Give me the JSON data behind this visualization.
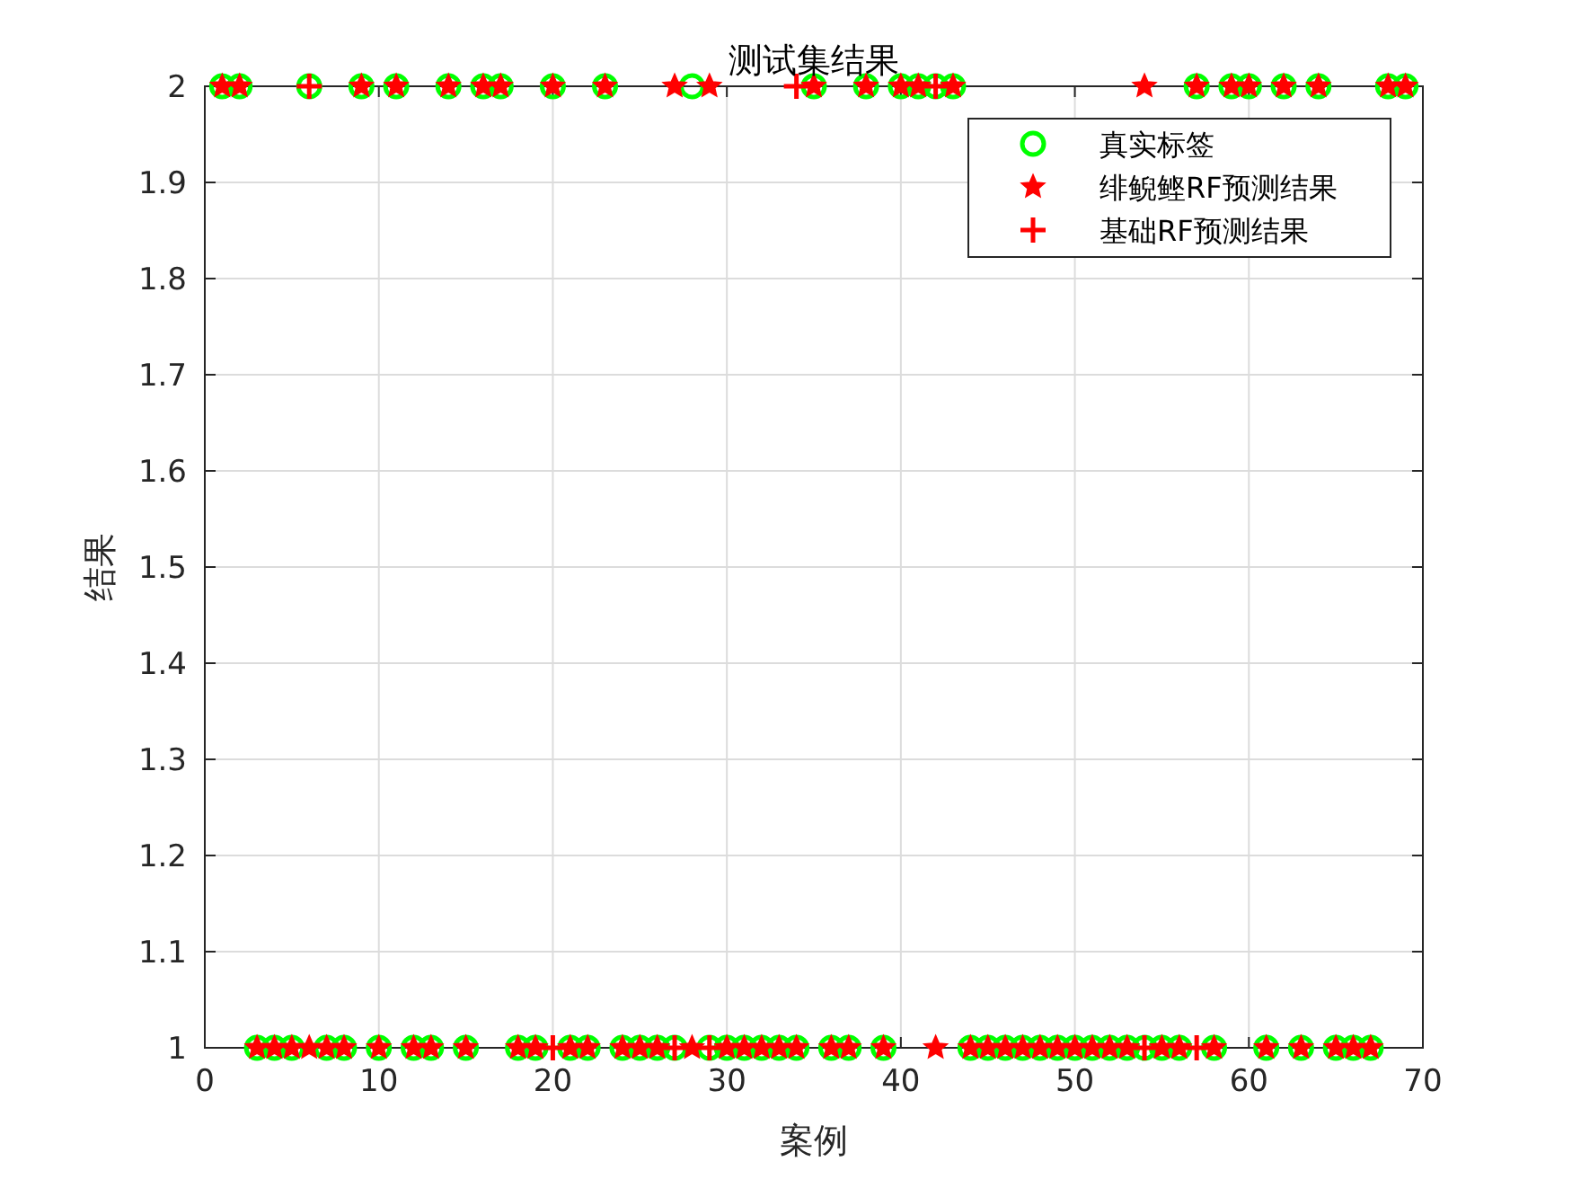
{
  "chart_data": {
    "type": "scatter",
    "title": "测试集结果",
    "xlabel": "案例",
    "ylabel": "结果",
    "x": [
      1,
      2,
      3,
      4,
      5,
      6,
      7,
      8,
      9,
      10,
      11,
      12,
      13,
      14,
      15,
      16,
      17,
      18,
      19,
      20,
      21,
      22,
      23,
      24,
      25,
      26,
      27,
      28,
      29,
      30,
      31,
      32,
      33,
      34,
      35,
      36,
      37,
      38,
      39,
      40,
      41,
      42,
      43,
      44,
      45,
      46,
      47,
      48,
      49,
      50,
      51,
      52,
      53,
      54,
      55,
      56,
      57,
      58,
      59,
      60,
      61,
      62,
      63,
      64,
      65,
      66,
      67,
      68,
      69
    ],
    "xlim": [
      0,
      70
    ],
    "xticks": [
      0,
      10,
      20,
      30,
      40,
      50,
      60,
      70
    ],
    "ylim": [
      1,
      2
    ],
    "yticks": [
      1,
      1.1,
      1.2,
      1.3,
      1.4,
      1.5,
      1.6,
      1.7,
      1.8,
      1.9,
      2
    ],
    "grid": true,
    "legend": "top right",
    "series": [
      {
        "name": "真实标签",
        "color": "#00ff00",
        "marker": "circle",
        "values": [
          2,
          2,
          1,
          1,
          1,
          2,
          1,
          1,
          2,
          1,
          2,
          1,
          1,
          2,
          1,
          2,
          2,
          1,
          1,
          2,
          1,
          1,
          2,
          1,
          1,
          1,
          1,
          2,
          1,
          1,
          1,
          1,
          1,
          1,
          2,
          1,
          1,
          2,
          1,
          2,
          2,
          2,
          2,
          1,
          1,
          1,
          1,
          1,
          1,
          1,
          1,
          1,
          1,
          1,
          1,
          1,
          2,
          1,
          2,
          2,
          1,
          2,
          1,
          2,
          1,
          1,
          1,
          2,
          2
        ]
      },
      {
        "name": "绯鲵鲣RF预测结果",
        "color": "#ff0000",
        "marker": "star",
        "values": [
          2,
          2,
          1,
          1,
          1,
          1,
          1,
          1,
          2,
          1,
          2,
          1,
          1,
          2,
          1,
          2,
          2,
          1,
          1,
          2,
          1,
          1,
          2,
          1,
          1,
          1,
          2,
          1,
          2,
          1,
          1,
          1,
          1,
          1,
          2,
          1,
          1,
          2,
          1,
          2,
          2,
          1,
          2,
          1,
          1,
          1,
          1,
          1,
          1,
          1,
          1,
          1,
          1,
          2,
          1,
          1,
          2,
          1,
          2,
          2,
          1,
          2,
          1,
          2,
          1,
          1,
          1,
          2,
          2
        ]
      },
      {
        "name": "基础RF预测结果",
        "color": "#ff0000",
        "marker": "cross",
        "values": [
          null,
          null,
          null,
          null,
          null,
          2,
          null,
          null,
          null,
          null,
          null,
          null,
          null,
          null,
          null,
          null,
          null,
          null,
          null,
          1,
          null,
          null,
          null,
          null,
          null,
          null,
          1,
          null,
          1,
          null,
          null,
          null,
          null,
          2,
          null,
          null,
          null,
          null,
          null,
          null,
          null,
          2,
          null,
          null,
          null,
          null,
          null,
          null,
          null,
          null,
          null,
          null,
          null,
          1,
          null,
          null,
          1,
          null,
          null,
          null,
          null,
          null,
          null,
          null,
          null,
          null,
          null,
          null,
          null
        ]
      }
    ]
  }
}
